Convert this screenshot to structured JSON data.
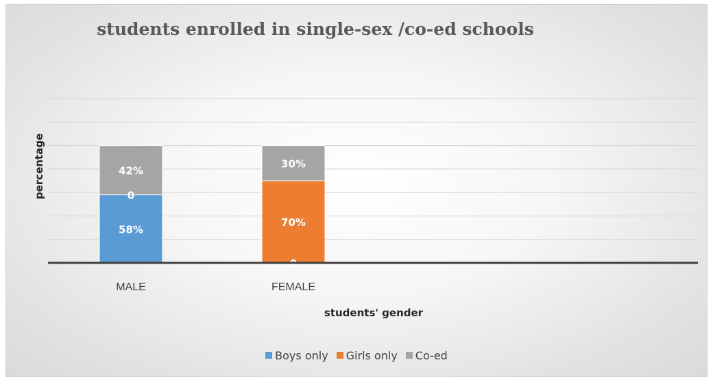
{
  "chart_data": {
    "type": "bar",
    "stacked": true,
    "title": "students enrolled in single-sex /co-ed schools",
    "xlabel": "students' gender",
    "ylabel": "percentage",
    "categories": [
      "MALE",
      "FEMALE"
    ],
    "series": [
      {
        "name": "Boys only",
        "values": [
          58,
          0
        ],
        "labels": [
          "58%",
          "0"
        ],
        "color": "#5b9bd5"
      },
      {
        "name": "Girls only",
        "values": [
          0,
          70
        ],
        "labels": [
          "0",
          "70%"
        ],
        "color": "#ed7d31"
      },
      {
        "name": "Co-ed",
        "values": [
          42,
          30
        ],
        "labels": [
          "42%",
          "30%"
        ],
        "color": "#a5a5a5"
      }
    ],
    "ylim": [
      0,
      140
    ],
    "grid": true,
    "legend_position": "bottom"
  }
}
